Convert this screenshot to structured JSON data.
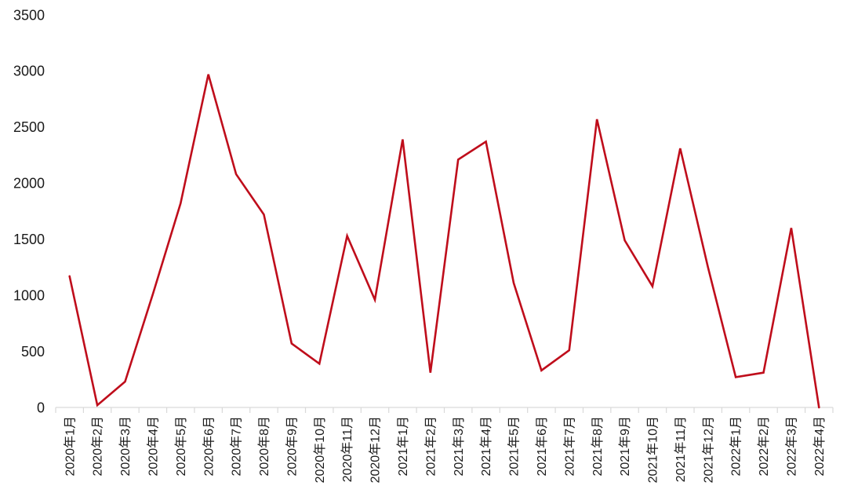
{
  "chart_data": {
    "type": "line",
    "title": "",
    "xlabel": "",
    "ylabel": "",
    "categories": [
      "2020年1月",
      "2020年2月",
      "2020年3月",
      "2020年4月",
      "2020年5月",
      "2020年6月",
      "2020年7月",
      "2020年8月",
      "2020年9月",
      "2020年10月",
      "2020年11月",
      "2020年12月",
      "2021年1月",
      "2021年2月",
      "2021年3月",
      "2021年4月",
      "2021年5月",
      "2021年6月",
      "2021年7月",
      "2021年8月",
      "2021年9月",
      "2021年10月",
      "2021年11月",
      "2021年12月",
      "2022年1月",
      "2022年2月",
      "2022年3月",
      "2022年4月"
    ],
    "values": [
      1170,
      20,
      230,
      1010,
      1820,
      2970,
      2080,
      1720,
      570,
      390,
      1530,
      960,
      2390,
      310,
      2210,
      2370,
      1110,
      330,
      510,
      2570,
      1490,
      1080,
      2310,
      1250,
      270,
      310,
      1600,
      0
    ],
    "y_ticks": [
      0,
      500,
      1000,
      1500,
      2000,
      2500,
      3000,
      3500
    ],
    "ylim": [
      0,
      3500
    ],
    "grid": false,
    "legend": false,
    "x_label_rotation": -90,
    "colors": {
      "line": "#BF0D1B",
      "axis": "#D9D9D9",
      "text": "#1A1A1A",
      "background": "#FFFFFF"
    }
  }
}
